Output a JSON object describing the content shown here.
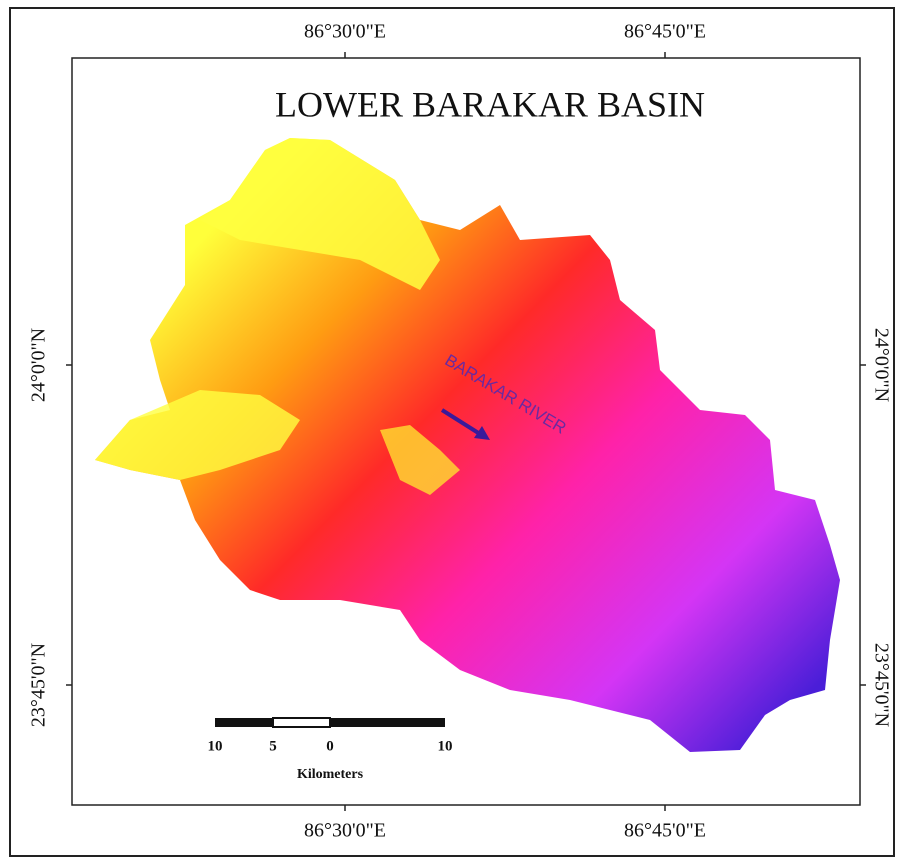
{
  "title": "LOWER BARAKAR BASIN",
  "river_label": "BARAKAR RIVER",
  "coordinates": {
    "top": [
      "86°30'0\"E",
      "86°45'0\"E"
    ],
    "bottom": [
      "86°30'0\"E",
      "86°45'0\"E"
    ],
    "left": [
      "24°0'0\"N",
      "23°45'0\"N"
    ],
    "right": [
      "24°0'0\"N",
      "23°45'0\"N"
    ]
  },
  "scale_bar": {
    "labels": [
      "10",
      "5",
      "0",
      "10"
    ],
    "unit": "Kilometers"
  }
}
